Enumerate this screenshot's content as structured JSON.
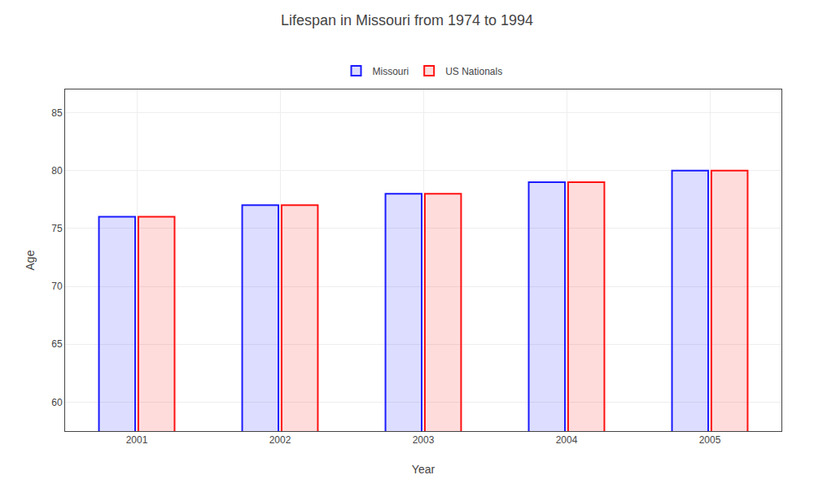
{
  "chart_data": {
    "type": "bar",
    "title": "Lifespan in Missouri from 1974 to 1994",
    "xlabel": "Year",
    "ylabel": "Age",
    "categories": [
      "2001",
      "2002",
      "2003",
      "2004",
      "2005"
    ],
    "series": [
      {
        "name": "Missouri",
        "color": "#1a1aff",
        "values": [
          76,
          77,
          78,
          79,
          80
        ]
      },
      {
        "name": "US Nationals",
        "color": "#ff1111",
        "values": [
          76,
          77,
          78,
          79,
          80
        ]
      }
    ],
    "ylim": [
      57.5,
      87
    ],
    "yticks": [
      60,
      65,
      70,
      75,
      80,
      85
    ],
    "grid": true,
    "legend": "top"
  }
}
